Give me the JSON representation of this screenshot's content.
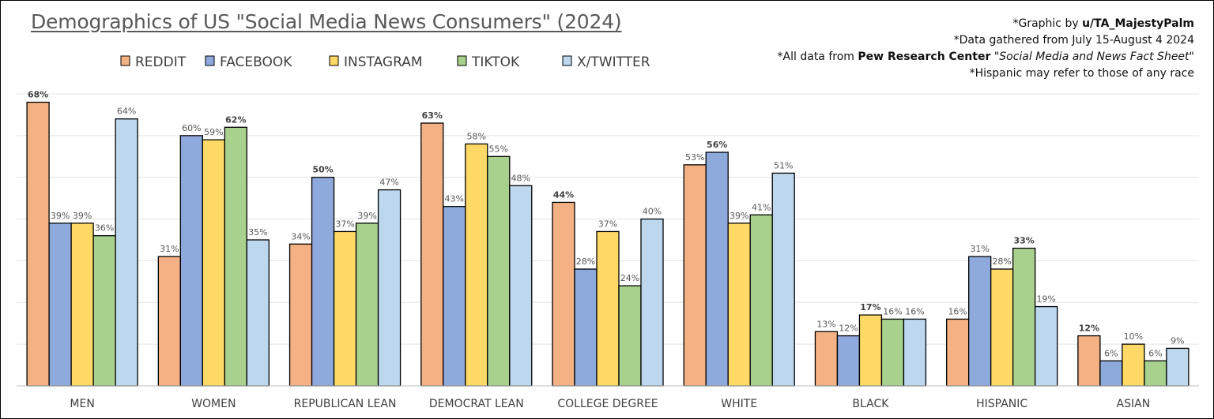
{
  "title": "Demographics of US \"Social Media News Consumers\" (2024)",
  "credits": {
    "line1_prefix": "*Graphic by ",
    "line1_author": "u/TA_MajestyPalm",
    "line2": "*Data gathered from July 15-August 4 2024",
    "line3_prefix": "*All data from ",
    "line3_source": "Pew Research Center",
    "line3_quote_open": " \"",
    "line3_report": "Social Media and News Fact Sheet",
    "line3_quote_close": "\"",
    "line4": "*Hispanic may refer to those of any race"
  },
  "chart_data": {
    "type": "bar",
    "title": "Demographics of US \"Social Media News Consumers\" (2024)",
    "xlabel": "",
    "ylabel": "",
    "ylim": [
      0,
      70
    ],
    "grid": true,
    "legend_position": "top-left",
    "value_suffix": "%",
    "categories": [
      "MEN",
      "WOMEN",
      "REPUBLICAN LEAN",
      "DEMOCRAT LEAN",
      "COLLEGE DEGREE",
      "WHITE",
      "BLACK",
      "HISPANIC",
      "ASIAN"
    ],
    "series": [
      {
        "name": "REDDIT",
        "color": "#F4B183",
        "values": [
          68,
          31,
          34,
          63,
          44,
          53,
          13,
          16,
          12
        ]
      },
      {
        "name": "FACEBOOK",
        "color": "#8EA9DB",
        "values": [
          39,
          60,
          50,
          43,
          28,
          56,
          12,
          31,
          6
        ]
      },
      {
        "name": "INSTAGRAM",
        "color": "#FFD966",
        "values": [
          39,
          59,
          37,
          58,
          37,
          39,
          17,
          28,
          10
        ]
      },
      {
        "name": "TIKTOK",
        "color": "#A9D18E",
        "values": [
          36,
          62,
          39,
          55,
          24,
          41,
          16,
          33,
          6
        ]
      },
      {
        "name": "X/TWITTER",
        "color": "#BDD7EE",
        "values": [
          64,
          35,
          47,
          48,
          40,
          51,
          16,
          19,
          9
        ]
      }
    ]
  }
}
